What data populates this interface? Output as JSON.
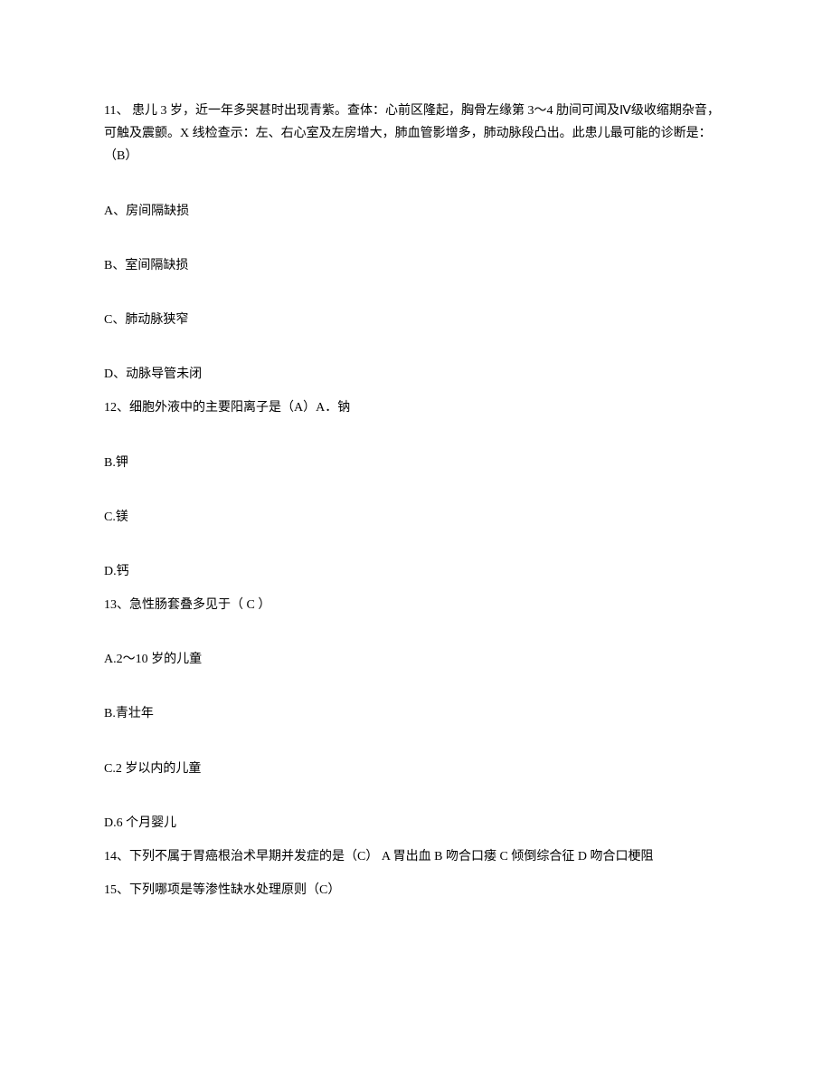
{
  "q11": {
    "text": "11、 患儿 3 岁，近一年多哭甚时出现青紫。查体：心前区隆起，胸骨左缘第 3～4 肋间可闻及Ⅳ级收缩期杂音，可触及震颤。X 线检查示：左、右心室及左房增大，肺血管影增多，肺动脉段凸出。此患儿最可能的诊断是：（B）",
    "optA": "A、房间隔缺损",
    "optB": "B、室间隔缺损",
    "optC": "C、肺动脉狭窄",
    "optD": "D、动脉导管未闭"
  },
  "q12": {
    "text": "12、细胞外液中的主要阳离子是（A）A．钠",
    "optB": "B.钾",
    "optC": "C.镁",
    "optD": "D.钙"
  },
  "q13": {
    "text": "13、急性肠套叠多见于（ C ）",
    "optA": "A.2～10 岁的儿童",
    "optB": "B.青壮年",
    "optC": "C.2 岁以内的儿童",
    "optD": "D.6 个月婴儿"
  },
  "q14": {
    "text": "14、下列不属于胃癌根治术早期并发症的是（C）  A 胃出血             B 吻合口瘘 C 倾倒综合征             D 吻合口梗阻"
  },
  "q15": {
    "text": "15、下列哪项是等渗性缺水处理原则（C）"
  }
}
